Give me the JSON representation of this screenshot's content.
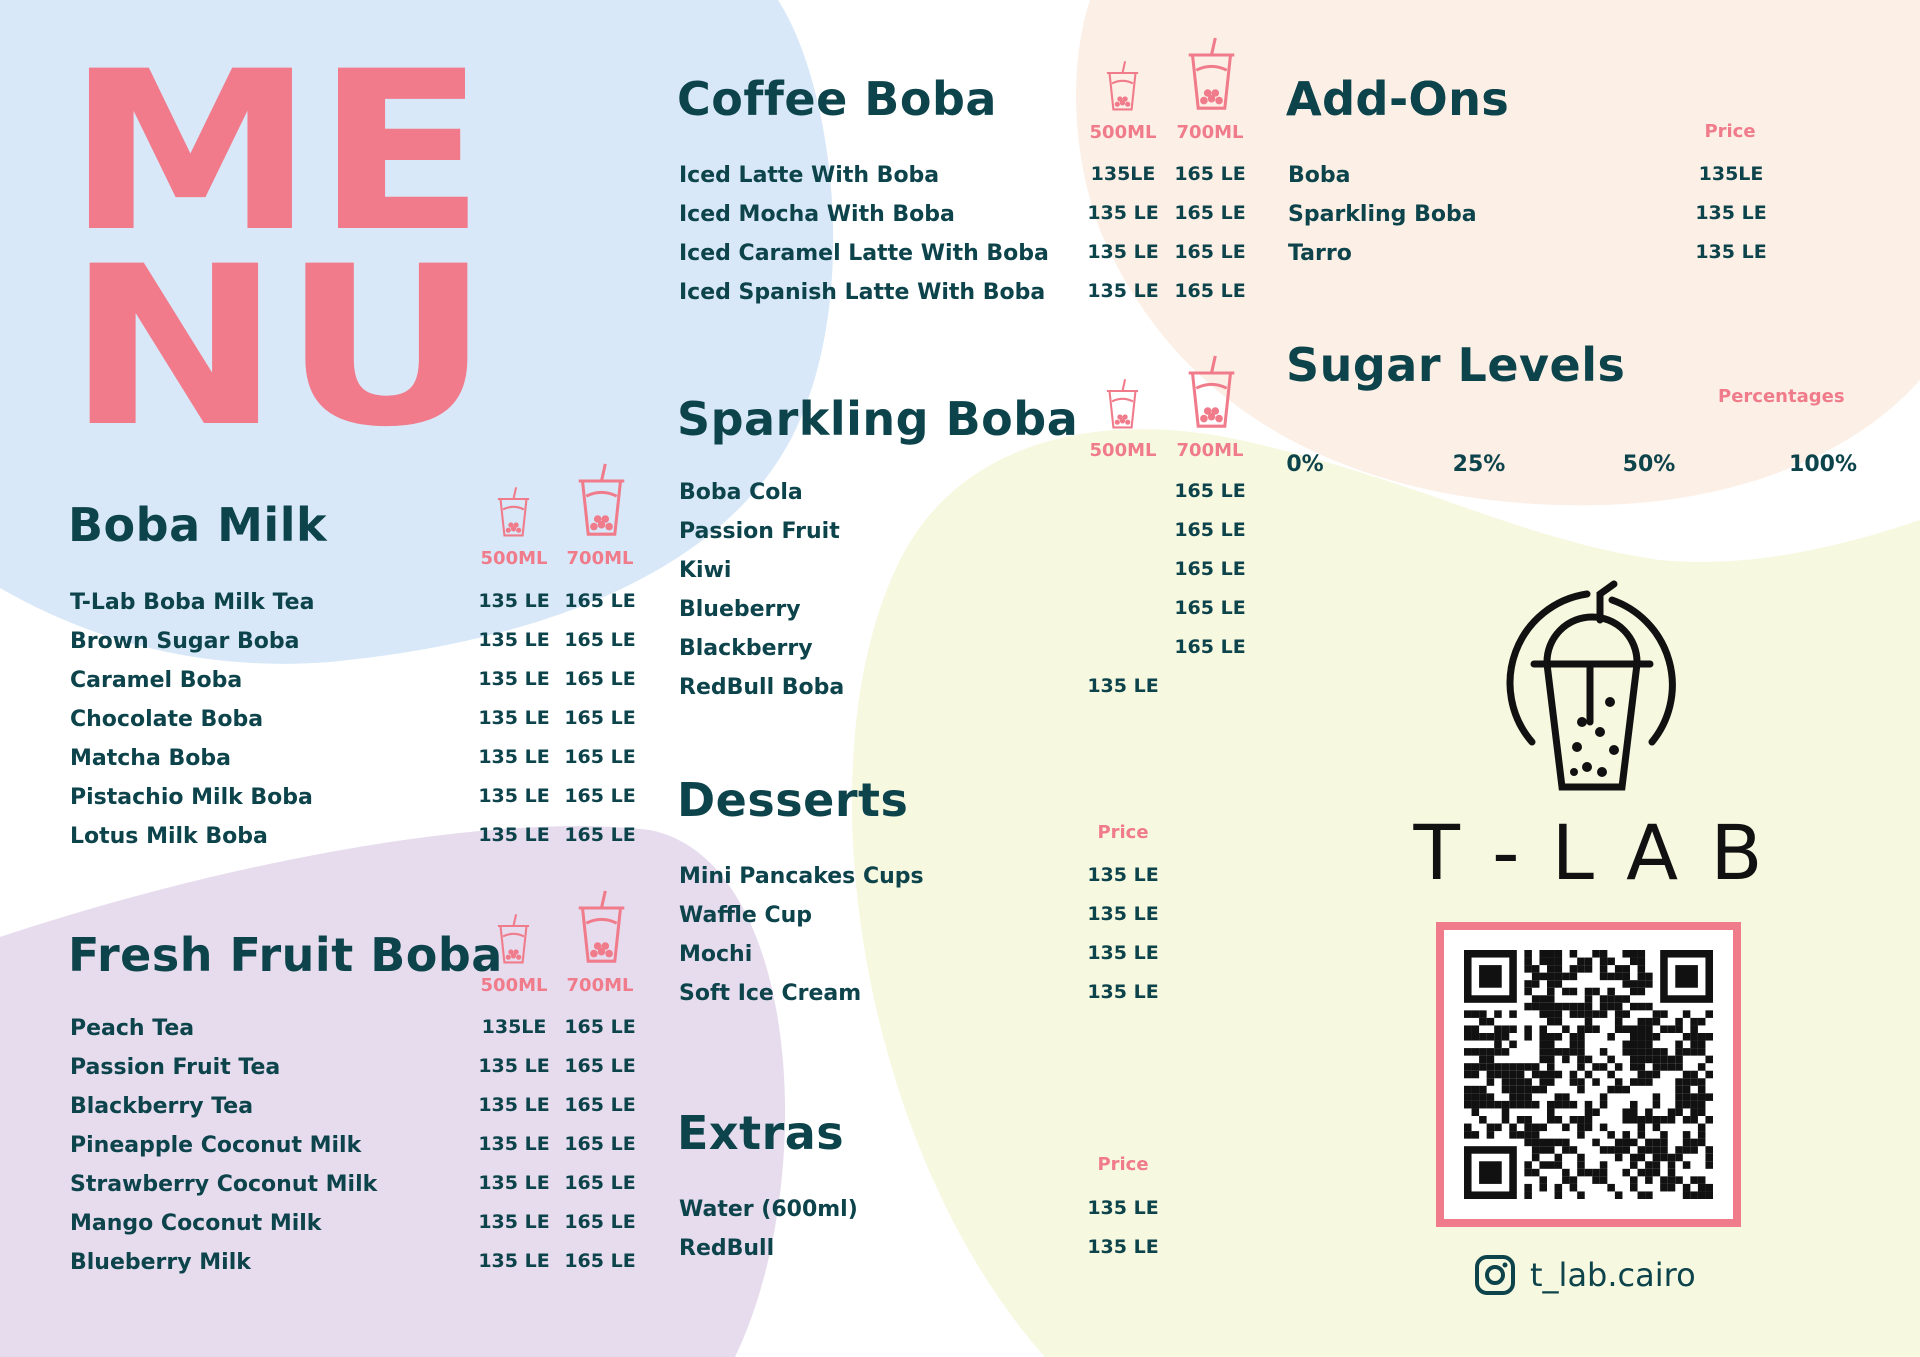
{
  "colors": {
    "text": "#0d434b",
    "accent": "#f07b8a",
    "blue_bg": "#d8e8f8",
    "peach_bg": "#fcefe6",
    "yellow_bg": "#f7f8e0",
    "lavender_bg": "#e6dcee"
  },
  "logo": {
    "line1": "ME",
    "line2": "NU"
  },
  "size_labels": {
    "small": "500ML",
    "large": "700ML"
  },
  "icons": {
    "cup": "boba-cup-icon",
    "instagram": "instagram-icon"
  },
  "boba_milk": {
    "title": "Boba Milk",
    "items": [
      {
        "name": "T-Lab Boba Milk Tea",
        "p500": "135 LE",
        "p700": "165 LE"
      },
      {
        "name": "Brown Sugar Boba",
        "p500": "135 LE",
        "p700": "165 LE"
      },
      {
        "name": "Caramel Boba",
        "p500": "135 LE",
        "p700": "165 LE"
      },
      {
        "name": "Chocolate Boba",
        "p500": "135 LE",
        "p700": "165 LE"
      },
      {
        "name": "Matcha Boba",
        "p500": "135 LE",
        "p700": "165 LE"
      },
      {
        "name": "Pistachio Milk Boba",
        "p500": "135 LE",
        "p700": "165 LE"
      },
      {
        "name": "Lotus Milk Boba",
        "p500": "135 LE",
        "p700": "165 LE"
      }
    ]
  },
  "fresh_fruit": {
    "title": "Fresh Fruit Boba",
    "items": [
      {
        "name": "Peach Tea",
        "p500": "135LE",
        "p700": "165 LE"
      },
      {
        "name": "Passion Fruit Tea",
        "p500": "135 LE",
        "p700": "165 LE"
      },
      {
        "name": "Blackberry Tea",
        "p500": "135 LE",
        "p700": "165 LE"
      },
      {
        "name": "Pineapple Coconut Milk",
        "p500": "135 LE",
        "p700": "165 LE"
      },
      {
        "name": "Strawberry Coconut Milk",
        "p500": "135 LE",
        "p700": "165 LE"
      },
      {
        "name": "Mango Coconut Milk",
        "p500": "135 LE",
        "p700": "165 LE"
      },
      {
        "name": "Blueberry Milk",
        "p500": "135 LE",
        "p700": "165 LE"
      }
    ]
  },
  "coffee": {
    "title": "Coffee Boba",
    "items": [
      {
        "name": "Iced Latte With Boba",
        "p500": "135LE",
        "p700": "165 LE"
      },
      {
        "name": "Iced Mocha With Boba",
        "p500": "135 LE",
        "p700": "165 LE"
      },
      {
        "name": "Iced Caramel Latte With Boba",
        "p500": "135 LE",
        "p700": "165 LE"
      },
      {
        "name": "Iced Spanish Latte With Boba",
        "p500": "135 LE",
        "p700": "165 LE"
      }
    ]
  },
  "sparkling": {
    "title": "Sparkling Boba",
    "items": [
      {
        "name": "Boba Cola",
        "p500": "",
        "p700": "165 LE"
      },
      {
        "name": "Passion Fruit",
        "p500": "",
        "p700": "165 LE"
      },
      {
        "name": "Kiwi",
        "p500": "",
        "p700": "165 LE"
      },
      {
        "name": "Blueberry",
        "p500": "",
        "p700": "165 LE"
      },
      {
        "name": "Blackberry",
        "p500": "",
        "p700": "165 LE"
      },
      {
        "name": "RedBull Boba",
        "p500": "135 LE",
        "p700": ""
      }
    ]
  },
  "desserts": {
    "title": "Desserts",
    "price_label": "Price",
    "items": [
      {
        "name": "Mini Pancakes Cups",
        "price": "135 LE"
      },
      {
        "name": "Waffle Cup",
        "price": "135 LE"
      },
      {
        "name": "Mochi",
        "price": "135 LE"
      },
      {
        "name": "Soft Ice Cream",
        "price": "135 LE"
      }
    ]
  },
  "extras": {
    "title": "Extras",
    "price_label": "Price",
    "items": [
      {
        "name": "Water (600ml)",
        "price": "135 LE"
      },
      {
        "name": "RedBull",
        "price": "135 LE"
      }
    ]
  },
  "addons": {
    "title": "Add-Ons",
    "price_label": "Price",
    "items": [
      {
        "name": "Boba",
        "price": "135LE"
      },
      {
        "name": "Sparkling Boba",
        "price": "135 LE"
      },
      {
        "name": "Tarro",
        "price": "135 LE"
      }
    ]
  },
  "sugar": {
    "title": "Sugar Levels",
    "label": "Percentages",
    "levels": [
      "0%",
      "25%",
      "50%",
      "100%"
    ]
  },
  "brand": {
    "name": "T - L A B",
    "instagram": "t_lab.cairo"
  }
}
